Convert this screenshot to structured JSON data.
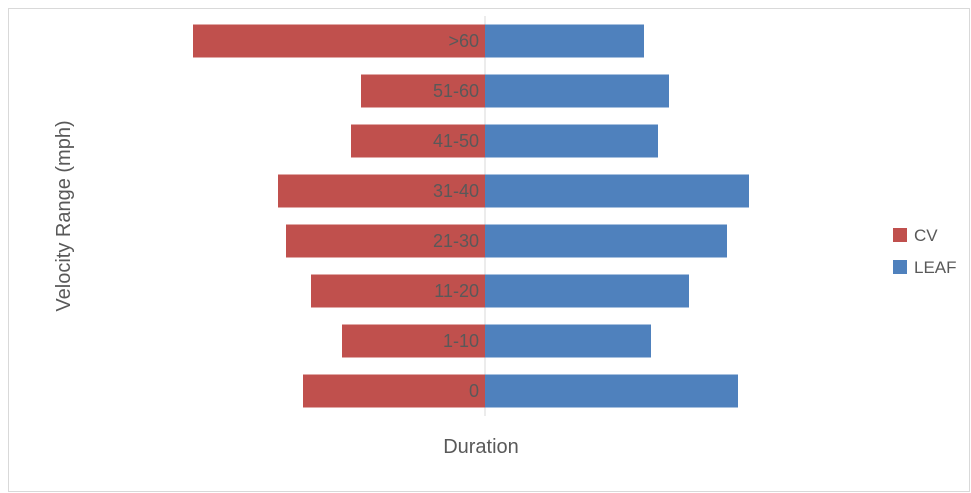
{
  "chart_data": {
    "type": "bar",
    "orientation": "horizontal",
    "layout": "diverging",
    "categories": [
      "0",
      "1-10",
      "11-20",
      "21-30",
      "31-40",
      "41-50",
      "51-60",
      ">60"
    ],
    "series": [
      {
        "name": "CV",
        "color": "#c0504d",
        "direction": "left",
        "values": [
          182,
          143,
          174,
          199,
          207,
          134,
          124,
          292
        ]
      },
      {
        "name": "LEAF",
        "color": "#4f81bd",
        "direction": "right",
        "values": [
          253,
          166,
          204,
          242,
          264,
          173,
          184,
          159
        ]
      }
    ],
    "xlabel": "Duration",
    "ylabel": "Velocity Range (mph)",
    "xlim": [
      -300,
      300
    ],
    "x_tick_labels_shown": false,
    "grid": false,
    "legend_position": "right"
  }
}
